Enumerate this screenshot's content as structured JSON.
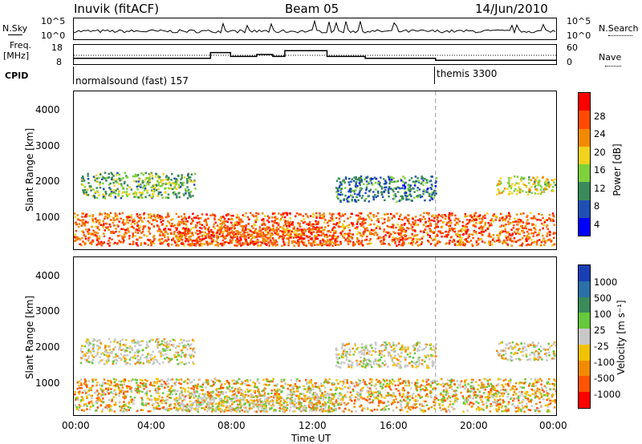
{
  "header": {
    "station": "Inuvik (fitACF)",
    "beam": "Beam 05",
    "date": "14/Jun/2010"
  },
  "top_panels": {
    "nsky_label": "N.Sky",
    "nsky_top": "10^5",
    "nsky_bottom": "10^0",
    "nsearch_label": "N.Search",
    "nsearch_top": "10^5",
    "nsearch_bottom": "10^0",
    "freq_label_1": "Freq.",
    "freq_label_2": "[MHz]",
    "freq_top": "18",
    "freq_bottom": "8",
    "nave_label": "Nave",
    "nave_top": "60",
    "nave_bottom": "0",
    "cpid_label": "CPID",
    "cpid_1": "normalsound (fast) 157",
    "cpid_2": "themis 3300"
  },
  "power_panel": {
    "ylabel": "Slant Range [km]",
    "yticks": [
      "1000",
      "2000",
      "3000",
      "4000"
    ],
    "colorbar_label": "Power [dB]",
    "colorbar_ticks": [
      "4",
      "8",
      "12",
      "16",
      "20",
      "24",
      "28"
    ],
    "colors": [
      "#0000ff",
      "#1f4fb3",
      "#3a8a5a",
      "#7fd13a",
      "#f2d21c",
      "#f28a00",
      "#ff4a00",
      "#ff0000"
    ]
  },
  "velocity_panel": {
    "ylabel": "Slant Range [km]",
    "yticks": [
      "1000",
      "2000",
      "3000",
      "4000"
    ],
    "colorbar_label": "Velocity [m s⁻¹]",
    "colorbar_ticks": [
      "1000",
      "500",
      "100",
      "25",
      "-25",
      "-100",
      "-500",
      "-1000"
    ],
    "colors": [
      "#1a3fb5",
      "#2b70a8",
      "#3a8a5a",
      "#66c83a",
      "#c8c8c8",
      "#f2c200",
      "#f28a00",
      "#ff5500",
      "#ff0000"
    ]
  },
  "x_axis": {
    "ticks": [
      "00:00",
      "04:00",
      "08:00",
      "12:00",
      "16:00",
      "20:00",
      "00:00"
    ],
    "label": "Time UT"
  },
  "chart_data": {
    "type": "heatmap",
    "title": "Inuvik (fitACF)",
    "subtitle": "Beam 05",
    "xlabel": "Time UT",
    "ylabel": "Slant Range [km]",
    "xlim": [
      "00:00",
      "24:00"
    ],
    "ylim": [
      180,
      4500
    ],
    "frequency_steps": [
      {
        "start_h": 0,
        "end_h": 6.8,
        "freq_mhz": 11
      },
      {
        "start_h": 6.8,
        "end_h": 7.8,
        "freq_mhz": 14
      },
      {
        "start_h": 7.8,
        "end_h": 9.1,
        "freq_mhz": 12
      },
      {
        "start_h": 9.1,
        "end_h": 9.9,
        "freq_mhz": 13
      },
      {
        "start_h": 9.9,
        "end_h": 10.5,
        "freq_mhz": 12
      },
      {
        "start_h": 10.5,
        "end_h": 12.6,
        "freq_mhz": 15
      },
      {
        "start_h": 12.6,
        "end_h": 14.5,
        "freq_mhz": 12
      },
      {
        "start_h": 14.5,
        "end_h": 18,
        "freq_mhz": 11
      },
      {
        "start_h": 18,
        "end_h": 24,
        "freq_mhz": 10
      }
    ],
    "echo_bands": [
      {
        "range_km": [
          300,
          1200
        ],
        "time_h": [
          0,
          24
        ],
        "power_db": 28,
        "velocity": -300
      },
      {
        "range_km": [
          1600,
          2300
        ],
        "time_h": [
          0.3,
          6
        ],
        "power_db": 16,
        "velocity": 0
      },
      {
        "range_km": [
          1500,
          2200
        ],
        "time_h": [
          13,
          18
        ],
        "power_db": 12,
        "velocity": 0
      },
      {
        "range_km": [
          1700,
          2200
        ],
        "time_h": [
          21,
          24
        ],
        "power_db": 20,
        "velocity": 0
      },
      {
        "range_km": [
          300,
          800
        ],
        "time_h": [
          5,
          13
        ],
        "power_db": 28,
        "velocity": 0
      }
    ]
  }
}
